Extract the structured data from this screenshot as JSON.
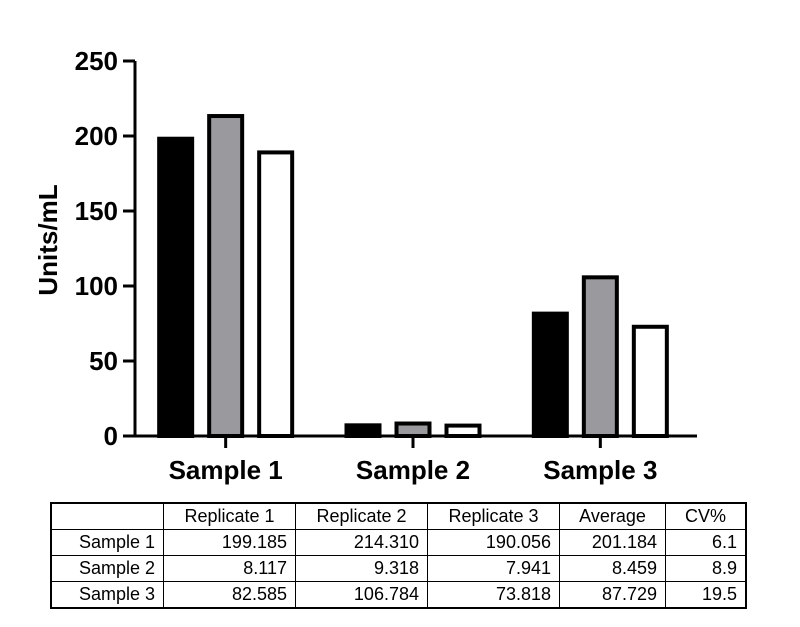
{
  "chart_data": {
    "type": "bar",
    "ylabel": "Units/mL",
    "ylim": [
      0,
      250
    ],
    "yticks": [
      0,
      50,
      100,
      150,
      200,
      250
    ],
    "categories": [
      "Sample 1",
      "Sample 2",
      "Sample 3"
    ],
    "series": [
      {
        "values": [
          199.185,
          8.117,
          82.585
        ],
        "color": "#000000"
      },
      {
        "values": [
          214.31,
          9.318,
          106.784
        ],
        "color": "#9a9a9e"
      },
      {
        "values": [
          190.056,
          7.941,
          73.818
        ],
        "color": "#ffffff"
      }
    ]
  },
  "table": {
    "headers": [
      "",
      "Replicate 1",
      "Replicate 2",
      "Replicate 3",
      "Average",
      "CV%"
    ],
    "rows": [
      [
        "Sample 1",
        "199.185",
        "214.310",
        "190.056",
        "201.184",
        "6.1"
      ],
      [
        "Sample 2",
        "8.117",
        "9.318",
        "7.941",
        "8.459",
        "8.9"
      ],
      [
        "Sample 3",
        "82.585",
        "106.784",
        "73.818",
        "87.729",
        "19.5"
      ]
    ]
  }
}
